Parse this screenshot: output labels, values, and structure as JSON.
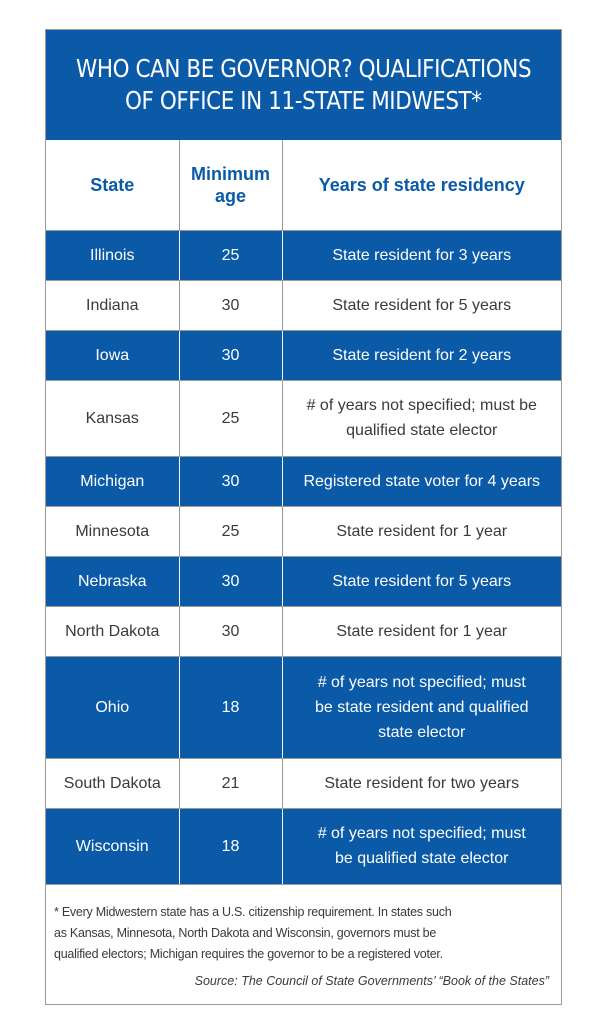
{
  "title": {
    "line1": "WHO CAN BE GOVERNOR? QUALIFICATIONS",
    "line2": "OF OFFICE IN 11-STATE MIDWEST*"
  },
  "headers": {
    "state": "State",
    "age_line1": "Minimum",
    "age_line2": "age",
    "residency": "Years of state residency"
  },
  "rows": [
    {
      "state": "Illinois",
      "age": "25",
      "residency": [
        "State resident for 3 years"
      ]
    },
    {
      "state": "Indiana",
      "age": "30",
      "residency": [
        "State resident for 5 years"
      ]
    },
    {
      "state": "Iowa",
      "age": "30",
      "residency": [
        "State resident for 2 years"
      ]
    },
    {
      "state": "Kansas",
      "age": "25",
      "residency": [
        "# of years not specified; must be",
        "qualified state elector"
      ]
    },
    {
      "state": "Michigan",
      "age": "30",
      "residency": [
        "Registered state voter for 4 years"
      ]
    },
    {
      "state": "Minnesota",
      "age": "25",
      "residency": [
        "State resident for 1 year"
      ]
    },
    {
      "state": "Nebraska",
      "age": "30",
      "residency": [
        "State resident for 5 years"
      ]
    },
    {
      "state": "North Dakota",
      "age": "30",
      "residency": [
        "State resident for 1 year"
      ]
    },
    {
      "state": "Ohio",
      "age": "18",
      "residency": [
        "# of years not specified; must",
        "be state resident and qualified",
        "state elector"
      ]
    },
    {
      "state": "South Dakota",
      "age": "21",
      "residency": [
        "State resident for two years"
      ]
    },
    {
      "state": "Wisconsin",
      "age": "18",
      "residency": [
        "# of years not specified; must",
        "be qualified state elector"
      ]
    }
  ],
  "footnote": {
    "lines": [
      "* Every Midwestern state has a U.S. citizenship requirement. In states such",
      "as Kansas, Minnesota, North Dakota and Wisconsin, governors must be",
      "qualified electors; Michigan requires the governor to be a registered voter."
    ],
    "source": "Source: The Council of State Governments’ “Book of the States”"
  },
  "colors": {
    "accent_blue": "#0b5aa8",
    "text_gray": "#3a3a3a",
    "border_gray": "#9a9a9a"
  }
}
